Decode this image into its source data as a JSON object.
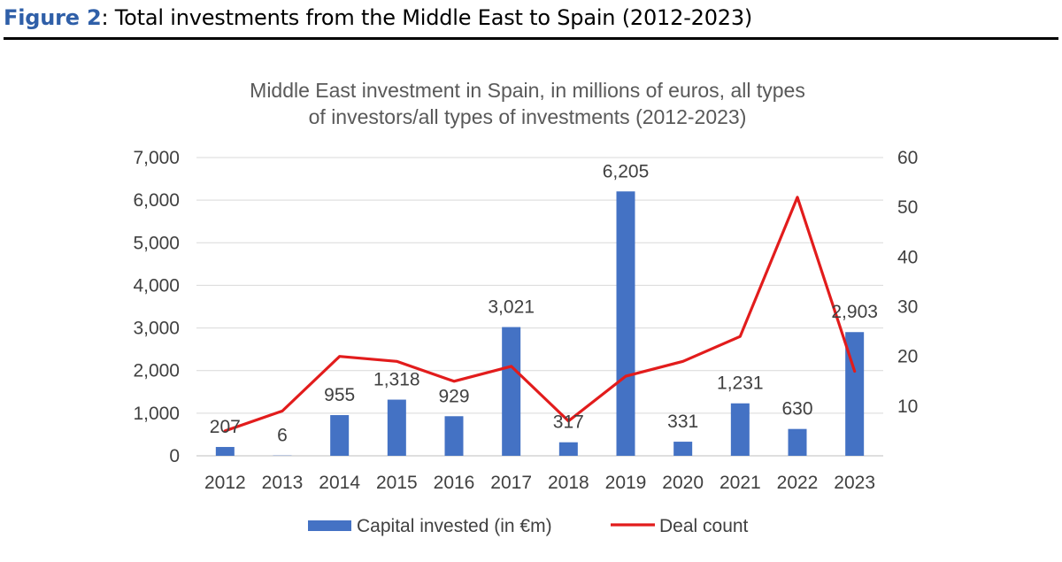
{
  "figure": {
    "label": "Figure 2",
    "caption": ": Total investments from the Middle East to Spain (2012-2023)"
  },
  "chart_data": {
    "type": "bar",
    "title": [
      "Middle East investment in Spain, in millions of euros, all types",
      "of investors/all types of investments (2012-2023)"
    ],
    "categories": [
      "2012",
      "2013",
      "2014",
      "2015",
      "2016",
      "2017",
      "2018",
      "2019",
      "2020",
      "2021",
      "2022",
      "2023"
    ],
    "series": [
      {
        "name": "Capital invested (in €m)",
        "type": "bar",
        "axis": "left",
        "color": "#4472c4",
        "values": [
          207,
          6,
          955,
          1318,
          929,
          3021,
          317,
          6205,
          331,
          1231,
          630,
          2903
        ],
        "labels": [
          "207",
          "6",
          "955",
          "1,318",
          "929",
          "3,021",
          "317",
          "6,205",
          "331",
          "1,231",
          "630",
          "2,903"
        ]
      },
      {
        "name": "Deal count",
        "type": "line",
        "axis": "right",
        "color": "#e21c1c",
        "values": [
          5,
          9,
          20,
          19,
          15,
          18,
          7,
          16,
          19,
          24,
          52,
          17
        ]
      }
    ],
    "y_left": {
      "ylim": [
        0,
        7000
      ],
      "ticks": [
        0,
        1000,
        2000,
        3000,
        4000,
        5000,
        6000,
        7000
      ],
      "tick_labels": [
        "0",
        "1,000",
        "2,000",
        "3,000",
        "4,000",
        "5,000",
        "6,000",
        "7,000"
      ]
    },
    "y_right": {
      "ylim": [
        0,
        60
      ],
      "ticks": [
        10,
        20,
        30,
        40,
        50,
        60
      ],
      "tick_labels": [
        "10",
        "20",
        "30",
        "40",
        "50",
        "60"
      ]
    },
    "grid": true,
    "legend": "bottom"
  }
}
